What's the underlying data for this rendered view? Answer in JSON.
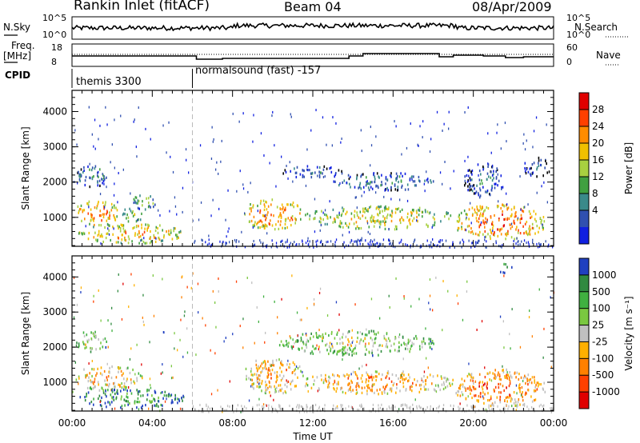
{
  "header": {
    "title": "Rankin Inlet (fitACF)",
    "beam": "Beam 04",
    "date": "08/Apr/2009"
  },
  "panel_labels": {
    "nsky": "N.Sky",
    "nsearch": "N.Search",
    "freq": "Freq.",
    "freq_unit": "[MHz]",
    "nave": "Nave",
    "cpid": "CPID",
    "nsky_ticks": [
      "10^5",
      "10^0"
    ],
    "nsearch_ticks": [
      "10^5",
      "10^0"
    ],
    "freq_ticks": [
      "18",
      "8"
    ],
    "nave_ticks": [
      "60",
      "0"
    ]
  },
  "cpid_segments": [
    {
      "start_hour": 0,
      "end_hour": 6,
      "label": "themis 3300"
    },
    {
      "start_hour": 6,
      "end_hour": 24,
      "label": "normalsound (fast) -157"
    }
  ],
  "chart_data": [
    {
      "type": "heatmap",
      "name": "power-panel",
      "ylabel": "Slant Range [km]",
      "xlabel": "",
      "xlim_hours": [
        0,
        24
      ],
      "ylim": [
        180,
        4600
      ],
      "yticks": [
        1000,
        2000,
        3000,
        4000
      ],
      "colorbar_label": "Power [dB]",
      "colorbar_ticks": [
        "28",
        "24",
        "20",
        "16",
        "12",
        "8",
        "4"
      ],
      "colorbar_colors": [
        "#e00000",
        "#ff4000",
        "#ff8c00",
        "#f0c000",
        "#a8d040",
        "#40a040",
        "#3a8a8a",
        "#3050b0",
        "#1020e0"
      ],
      "blobs": [
        {
          "t0": 0.2,
          "t1": 1.8,
          "r0": 1850,
          "r1": 2450,
          "level": 0.35
        },
        {
          "t0": 0.1,
          "t1": 2.3,
          "r0": 750,
          "r1": 1450,
          "level": 0.75
        },
        {
          "t0": 2.5,
          "t1": 3.5,
          "r0": 850,
          "r1": 1300,
          "level": 0.55
        },
        {
          "t0": 3.0,
          "t1": 4.2,
          "r0": 1200,
          "r1": 1650,
          "level": 0.45
        },
        {
          "t0": 0.3,
          "t1": 5.6,
          "r0": 250,
          "r1": 800,
          "level": 0.7
        },
        {
          "t0": 8.5,
          "t1": 11.5,
          "r0": 650,
          "r1": 1500,
          "level": 0.75
        },
        {
          "t0": 11.5,
          "t1": 19.0,
          "r0": 650,
          "r1": 1300,
          "level": 0.6
        },
        {
          "t0": 10.3,
          "t1": 13.5,
          "r0": 2100,
          "r1": 2450,
          "level": 0.25
        },
        {
          "t0": 13.0,
          "t1": 18.0,
          "r0": 1750,
          "r1": 2250,
          "level": 0.3
        },
        {
          "t0": 19.0,
          "t1": 23.6,
          "r0": 350,
          "r1": 1350,
          "level": 0.8
        },
        {
          "t0": 19.5,
          "t1": 21.5,
          "r0": 1550,
          "r1": 2500,
          "level": 0.25
        },
        {
          "t0": 22.5,
          "t1": 23.8,
          "r0": 2100,
          "r1": 2700,
          "level": 0.2
        }
      ]
    },
    {
      "type": "heatmap",
      "name": "velocity-panel",
      "ylabel": "Slant Range [km]",
      "xlabel": "Time UT",
      "xlim_hours": [
        0,
        24
      ],
      "ylim": [
        180,
        4600
      ],
      "yticks": [
        1000,
        2000,
        3000,
        4000
      ],
      "xtick_labels": [
        "00:00",
        "04:00",
        "08:00",
        "12:00",
        "16:00",
        "20:00",
        "00:00"
      ],
      "colorbar_label": "Velocity [m s⁻¹]",
      "colorbar_ticks": [
        "1000",
        "500",
        "100",
        "25",
        "-25",
        "-100",
        "-500",
        "-1000"
      ],
      "colorbar_colors": [
        "#2040c0",
        "#308a40",
        "#40b040",
        "#7ac840",
        "#c0c0c0",
        "#ffb000",
        "#ff8000",
        "#ff4000",
        "#e00000"
      ],
      "blobs": [
        {
          "t0": 0.2,
          "t1": 1.8,
          "r0": 1850,
          "r1": 2450,
          "level": 0.5
        },
        {
          "t0": 0.1,
          "t1": 3.5,
          "r0": 750,
          "r1": 1450,
          "level": 0.65
        },
        {
          "t0": 0.3,
          "t1": 5.6,
          "r0": 250,
          "r1": 800,
          "level": 0.3
        },
        {
          "t0": 8.5,
          "t1": 11.5,
          "r0": 650,
          "r1": 1700,
          "level": 0.72
        },
        {
          "t0": 11.5,
          "t1": 19.0,
          "r0": 650,
          "r1": 1300,
          "level": 0.72
        },
        {
          "t0": 10.3,
          "t1": 18.0,
          "r0": 1750,
          "r1": 2450,
          "level": 0.5
        },
        {
          "t0": 19.0,
          "t1": 23.6,
          "r0": 300,
          "r1": 1350,
          "level": 0.8
        },
        {
          "t0": 21.2,
          "t1": 21.9,
          "r0": 4100,
          "r1": 4400,
          "level": 0.2
        }
      ]
    }
  ]
}
